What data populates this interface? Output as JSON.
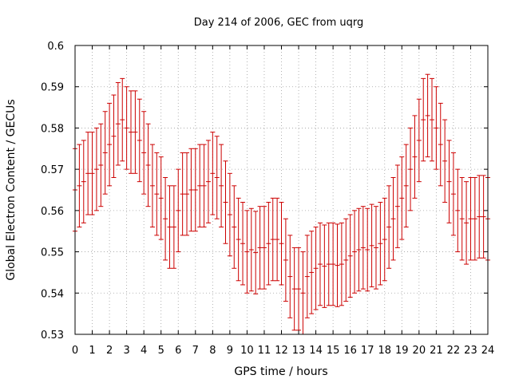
{
  "chart_data": {
    "type": "scatter",
    "title": "Day 214 of 2006, GEC from uqrg",
    "xlabel": "GPS time / hours",
    "ylabel": "Global Electron Content / GECUs",
    "xlim": [
      0,
      24
    ],
    "ylim": [
      0.53,
      0.6
    ],
    "x_ticks": [
      "0",
      "1",
      "2",
      "3",
      "4",
      "5",
      "6",
      "7",
      "8",
      "9",
      "10",
      "11",
      "12",
      "13",
      "14",
      "15",
      "16",
      "17",
      "18",
      "19",
      "20",
      "21",
      "22",
      "23",
      "24"
    ],
    "y_ticks": [
      "0.53",
      "0.54",
      "0.55",
      "0.56",
      "0.57",
      "0.58",
      "0.59",
      "0.6"
    ],
    "grid": true,
    "error_bars": true,
    "error_halfwidth": 0.01,
    "series_color": "#cc0000",
    "x": [
      0,
      0.25,
      0.5,
      0.75,
      1,
      1.25,
      1.5,
      1.75,
      2,
      2.25,
      2.5,
      2.75,
      3,
      3.25,
      3.5,
      3.75,
      4,
      4.25,
      4.5,
      4.75,
      5,
      5.25,
      5.5,
      5.75,
      6,
      6.25,
      6.5,
      6.75,
      7,
      7.25,
      7.5,
      7.75,
      8,
      8.25,
      8.5,
      8.75,
      9,
      9.25,
      9.5,
      9.75,
      10,
      10.25,
      10.5,
      10.75,
      11,
      11.25,
      11.5,
      11.75,
      12,
      12.25,
      12.5,
      12.75,
      13,
      13.25,
      13.5,
      13.75,
      14,
      14.25,
      14.5,
      14.75,
      15,
      15.25,
      15.5,
      15.75,
      16,
      16.25,
      16.5,
      16.75,
      17,
      17.25,
      17.5,
      17.75,
      18,
      18.25,
      18.5,
      18.75,
      19,
      19.25,
      19.5,
      19.75,
      20,
      20.25,
      20.5,
      20.75,
      21,
      21.25,
      21.5,
      21.75,
      22,
      22.25,
      22.5,
      22.75,
      23,
      23.25,
      23.5,
      23.75,
      24
    ],
    "y": [
      0.565,
      0.566,
      0.567,
      0.569,
      0.569,
      0.57,
      0.571,
      0.574,
      0.576,
      0.578,
      0.581,
      0.582,
      0.58,
      0.579,
      0.579,
      0.577,
      0.574,
      0.571,
      0.566,
      0.564,
      0.563,
      0.558,
      0.556,
      0.556,
      0.56,
      0.564,
      0.564,
      0.565,
      0.565,
      0.566,
      0.566,
      0.567,
      0.569,
      0.568,
      0.566,
      0.562,
      0.559,
      0.556,
      0.553,
      0.552,
      0.55,
      0.5505,
      0.5498,
      0.551,
      0.551,
      0.552,
      0.553,
      0.553,
      0.552,
      0.548,
      0.544,
      0.541,
      0.541,
      0.54,
      0.544,
      0.545,
      0.546,
      0.547,
      0.5465,
      0.547,
      0.547,
      0.5467,
      0.547,
      0.548,
      0.549,
      0.55,
      0.5505,
      0.551,
      0.5505,
      0.5515,
      0.551,
      0.552,
      0.553,
      0.556,
      0.558,
      0.561,
      0.563,
      0.566,
      0.57,
      0.573,
      0.577,
      0.582,
      0.583,
      0.582,
      0.58,
      0.576,
      0.572,
      0.567,
      0.564,
      0.56,
      0.558,
      0.557,
      0.558,
      0.558,
      0.5585,
      0.5585,
      0.558
    ]
  }
}
